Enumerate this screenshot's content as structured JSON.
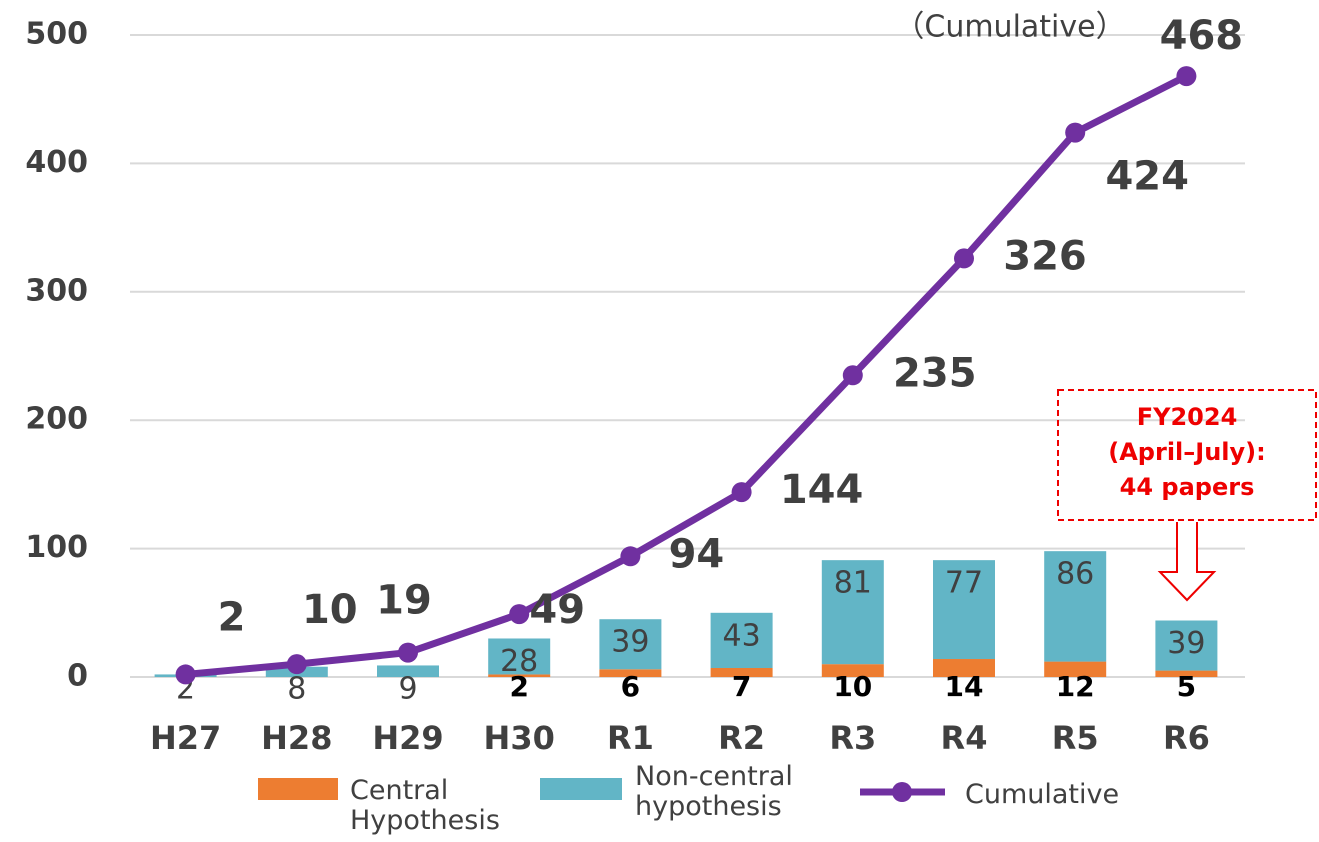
{
  "chart_data": {
    "type": "bar",
    "categories": [
      "H27",
      "H28",
      "H29",
      "H30",
      "R1",
      "R2",
      "R3",
      "R4",
      "R5",
      "R6"
    ],
    "series": [
      {
        "name": "Central Hypothesis",
        "color": "#ed7d31",
        "values": [
          null,
          null,
          null,
          2,
          6,
          7,
          10,
          14,
          12,
          5
        ]
      },
      {
        "name": "Non-central hypothesis",
        "color": "#62b5c6",
        "values": [
          2,
          8,
          9,
          28,
          39,
          43,
          81,
          77,
          86,
          39
        ]
      },
      {
        "name": "Cumulative",
        "type": "line",
        "color": "#7030a0",
        "values": [
          2,
          10,
          19,
          49,
          94,
          144,
          235,
          326,
          424,
          468
        ]
      }
    ],
    "ylim": [
      0,
      500
    ],
    "yticks": [
      0,
      100,
      200,
      300,
      400,
      500
    ],
    "grid": true,
    "annotations": [
      "（Cumulative）",
      "FY2024",
      "(April–July):",
      "44 papers"
    ]
  }
}
